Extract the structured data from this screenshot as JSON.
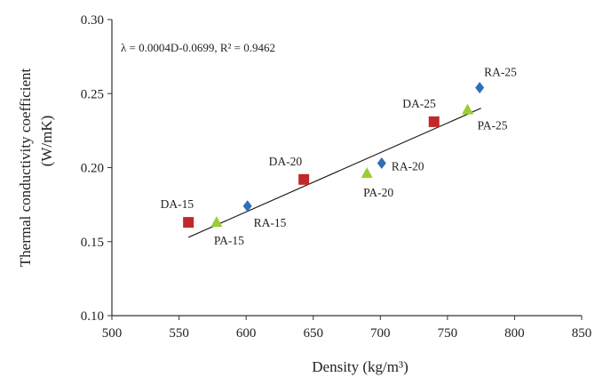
{
  "chart_data": {
    "type": "scatter",
    "title": "",
    "xlabel": "Density (kg/m³)",
    "ylabel_line1": "Thermal conductivity coefficient",
    "ylabel_line2": "(W/mK)",
    "xlim": [
      500,
      850
    ],
    "ylim": [
      0.1,
      0.3
    ],
    "x_ticks": [
      "500",
      "550",
      "600",
      "650",
      "700",
      "750",
      "800",
      "850"
    ],
    "y_ticks": [
      "0.10",
      "0.15",
      "0.20",
      "0.25",
      "0.30"
    ],
    "equation": "λ = 0.0004D-0.0699, R² = 0.9462",
    "trendline": {
      "slope": 0.0004,
      "intercept": -0.0699,
      "x_range": [
        557,
        775
      ]
    },
    "points": [
      {
        "label": "DA-15",
        "x": 557,
        "y": 0.163,
        "marker": "square",
        "color": "#c0282b",
        "label_pos": "top-left"
      },
      {
        "label": "PA-15",
        "x": 578,
        "y": 0.163,
        "marker": "triangle",
        "color": "#9acd32",
        "label_pos": "bottom-right"
      },
      {
        "label": "RA-15",
        "x": 601,
        "y": 0.174,
        "marker": "diamond",
        "color": "#2e6fb8",
        "label_pos": "bottom-right"
      },
      {
        "label": "DA-20",
        "x": 643,
        "y": 0.192,
        "marker": "square",
        "color": "#c0282b",
        "label_pos": "top-left"
      },
      {
        "label": "PA-20",
        "x": 690,
        "y": 0.196,
        "marker": "triangle",
        "color": "#9acd32",
        "label_pos": "bottom-right"
      },
      {
        "label": "RA-20",
        "x": 701,
        "y": 0.203,
        "marker": "diamond",
        "color": "#2e6fb8",
        "label_pos": "right"
      },
      {
        "label": "DA-25",
        "x": 740,
        "y": 0.231,
        "marker": "square",
        "color": "#c0282b",
        "label_pos": "top-left"
      },
      {
        "label": "PA-25",
        "x": 765,
        "y": 0.239,
        "marker": "triangle",
        "color": "#9acd32",
        "label_pos": "bottom-right"
      },
      {
        "label": "RA-25",
        "x": 774,
        "y": 0.254,
        "marker": "diamond",
        "color": "#2e6fb8",
        "label_pos": "top-right"
      }
    ]
  }
}
